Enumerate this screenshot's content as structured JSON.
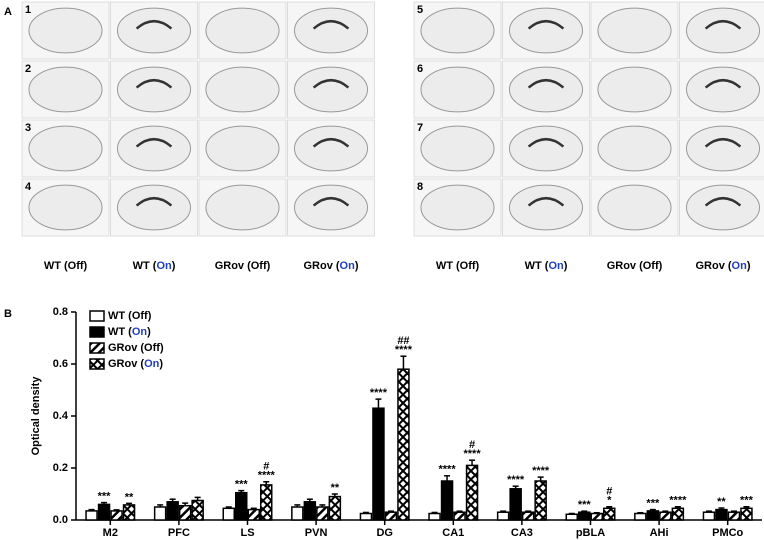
{
  "panel_a": {
    "label": "A",
    "highlight": "On",
    "highlight_color": "#1f3fbf",
    "columns": [
      "WT (Off)",
      "WT (On)",
      "GRov (Off)",
      "GRov (On)"
    ],
    "grids": [
      {
        "rows": [
          "1",
          "2",
          "3",
          "4"
        ]
      },
      {
        "rows": [
          "5",
          "6",
          "7",
          "8"
        ]
      }
    ]
  },
  "chart_data": {
    "type": "bar",
    "panel_label": "B",
    "ylabel": "Optical density",
    "highlight": "On",
    "highlight_color": "#1f3fbf",
    "categories": [
      "M2",
      "PFC",
      "LS",
      "PVN",
      "DG",
      "CA1",
      "CA3",
      "pBLA",
      "AHi",
      "PMCo"
    ],
    "ylim": [
      0,
      0.8
    ],
    "yticks": [
      {
        "value": 0,
        "label": "0.0"
      },
      0.2,
      0.4,
      0.6,
      0.8
    ],
    "series": [
      {
        "name": "WT (Off)",
        "color": "#000000",
        "pattern": "none",
        "values": [
          0.035,
          0.05,
          0.045,
          0.05,
          0.025,
          0.025,
          0.03,
          0.022,
          0.025,
          0.03
        ],
        "errors": [
          0.005,
          0.008,
          0.005,
          0.008,
          0.004,
          0.004,
          0.004,
          0.003,
          0.003,
          0.004
        ]
      },
      {
        "name": "WT (On)",
        "color": "#000000",
        "pattern": "solid",
        "values": [
          0.06,
          0.07,
          0.105,
          0.07,
          0.43,
          0.15,
          0.12,
          0.03,
          0.035,
          0.04
        ],
        "errors": [
          0.007,
          0.01,
          0.008,
          0.01,
          0.035,
          0.02,
          0.01,
          0.004,
          0.005,
          0.006
        ]
      },
      {
        "name": "GRov (Off)",
        "color": "#000000",
        "pattern": "diagonal",
        "values": [
          0.035,
          0.055,
          0.04,
          0.05,
          0.03,
          0.03,
          0.03,
          0.025,
          0.03,
          0.03
        ],
        "errors": [
          0.004,
          0.01,
          0.005,
          0.008,
          0.004,
          0.004,
          0.004,
          0.003,
          0.004,
          0.004
        ]
      },
      {
        "name": "GRov (On)",
        "color": "#000000",
        "pattern": "cross",
        "values": [
          0.058,
          0.075,
          0.135,
          0.09,
          0.58,
          0.21,
          0.15,
          0.045,
          0.045,
          0.045
        ],
        "errors": [
          0.006,
          0.012,
          0.012,
          0.01,
          0.05,
          0.02,
          0.015,
          0.006,
          0.006,
          0.006
        ]
      }
    ],
    "annotations": [
      {
        "category": "M2",
        "series": "WT (On)",
        "lines": [
          "***"
        ]
      },
      {
        "category": "M2",
        "series": "GRov (On)",
        "lines": [
          "**"
        ]
      },
      {
        "category": "LS",
        "series": "WT (On)",
        "lines": [
          "***"
        ]
      },
      {
        "category": "LS",
        "series": "GRov (On)",
        "lines": [
          "#",
          "****"
        ]
      },
      {
        "category": "PVN",
        "series": "GRov (On)",
        "lines": [
          "**"
        ]
      },
      {
        "category": "DG",
        "series": "WT (On)",
        "lines": [
          "****"
        ]
      },
      {
        "category": "DG",
        "series": "GRov (On)",
        "lines": [
          "##",
          "****"
        ]
      },
      {
        "category": "CA1",
        "series": "WT (On)",
        "lines": [
          "****"
        ]
      },
      {
        "category": "CA1",
        "series": "GRov (On)",
        "lines": [
          "#",
          "****"
        ]
      },
      {
        "category": "CA3",
        "series": "WT (On)",
        "lines": [
          "****"
        ]
      },
      {
        "category": "CA3",
        "series": "GRov (On)",
        "lines": [
          "****"
        ]
      },
      {
        "category": "pBLA",
        "series": "WT (On)",
        "lines": [
          "***"
        ]
      },
      {
        "category": "pBLA",
        "series": "GRov (On)",
        "lines": [
          "#",
          "*"
        ]
      },
      {
        "category": "AHi",
        "series": "WT (On)",
        "lines": [
          "***"
        ]
      },
      {
        "category": "AHi",
        "series": "GRov (On)",
        "lines": [
          "****"
        ]
      },
      {
        "category": "PMCo",
        "series": "WT (On)",
        "lines": [
          "**"
        ]
      },
      {
        "category": "PMCo",
        "series": "GRov (On)",
        "lines": [
          "***"
        ]
      }
    ]
  }
}
